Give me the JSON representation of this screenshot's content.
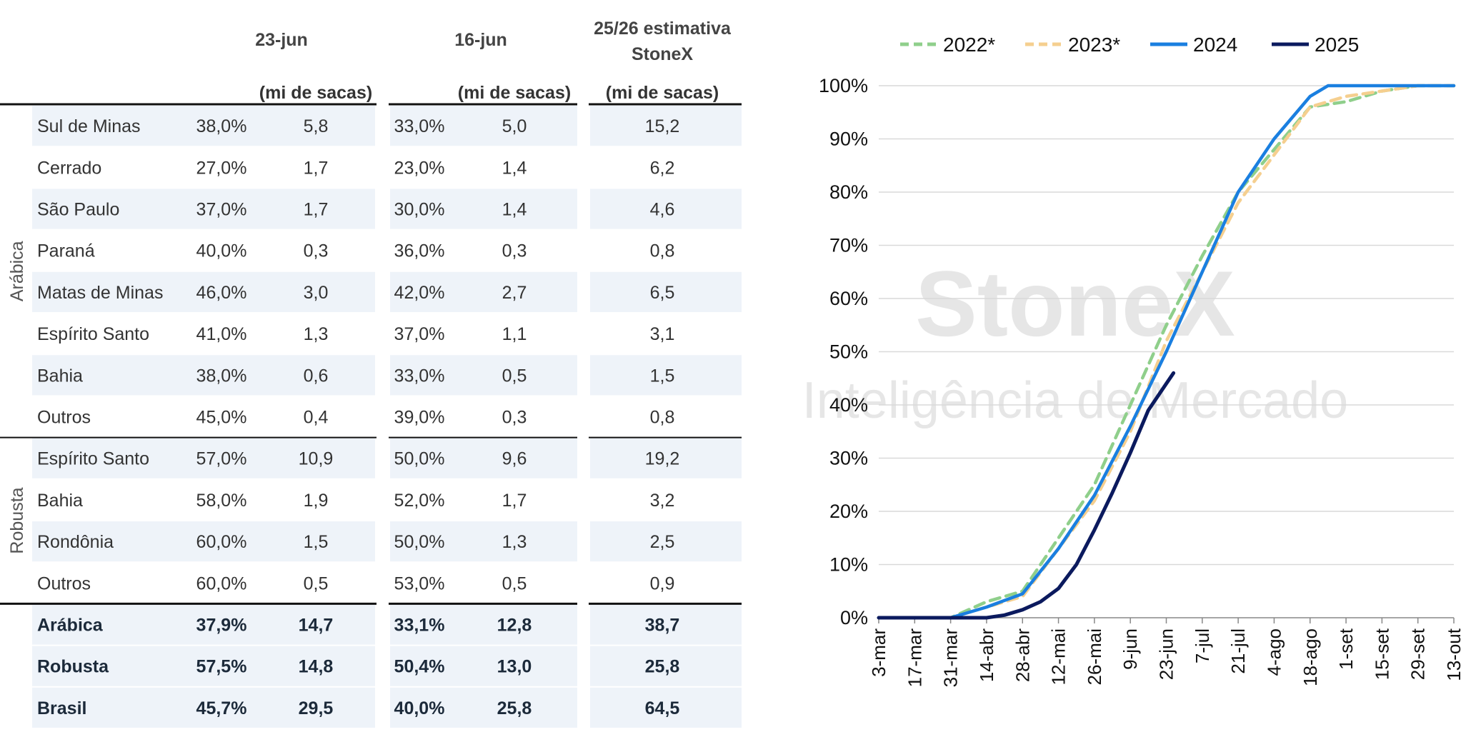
{
  "table": {
    "headers": {
      "col_23jun": "23-jun",
      "col_16jun": "16-jun",
      "col_est_line1": "25/26 estimativa",
      "col_est_line2": "StoneX",
      "unit": "(mi de sacas)"
    },
    "groups": {
      "arabica": "Arábica",
      "robusta": "Robusta"
    },
    "rows": [
      {
        "region": "Sul de Minas",
        "p23": "38,0%",
        "v23": "5,8",
        "p16": "33,0%",
        "v16": "5,0",
        "est": "15,2"
      },
      {
        "region": "Cerrado",
        "p23": "27,0%",
        "v23": "1,7",
        "p16": "23,0%",
        "v16": "1,4",
        "est": "6,2"
      },
      {
        "region": "São Paulo",
        "p23": "37,0%",
        "v23": "1,7",
        "p16": "30,0%",
        "v16": "1,4",
        "est": "4,6"
      },
      {
        "region": "Paraná",
        "p23": "40,0%",
        "v23": "0,3",
        "p16": "36,0%",
        "v16": "0,3",
        "est": "0,8"
      },
      {
        "region": "Matas de Minas",
        "p23": "46,0%",
        "v23": "3,0",
        "p16": "42,0%",
        "v16": "2,7",
        "est": "6,5"
      },
      {
        "region": "Espírito Santo",
        "p23": "41,0%",
        "v23": "1,3",
        "p16": "37,0%",
        "v16": "1,1",
        "est": "3,1"
      },
      {
        "region": "Bahia",
        "p23": "38,0%",
        "v23": "0,6",
        "p16": "33,0%",
        "v16": "0,5",
        "est": "1,5"
      },
      {
        "region": "Outros",
        "p23": "45,0%",
        "v23": "0,4",
        "p16": "39,0%",
        "v16": "0,3",
        "est": "0,8"
      },
      {
        "region": "Espírito Santo",
        "p23": "57,0%",
        "v23": "10,9",
        "p16": "50,0%",
        "v16": "9,6",
        "est": "19,2"
      },
      {
        "region": "Bahia",
        "p23": "58,0%",
        "v23": "1,9",
        "p16": "52,0%",
        "v16": "1,7",
        "est": "3,2"
      },
      {
        "region": "Rondônia",
        "p23": "60,0%",
        "v23": "1,5",
        "p16": "50,0%",
        "v16": "1,3",
        "est": "2,5"
      },
      {
        "region": "Outros",
        "p23": "60,0%",
        "v23": "0,5",
        "p16": "53,0%",
        "v16": "0,5",
        "est": "0,9"
      }
    ],
    "totals": [
      {
        "region": "Arábica",
        "p23": "37,9%",
        "v23": "14,7",
        "p16": "33,1%",
        "v16": "12,8",
        "est": "38,7"
      },
      {
        "region": "Robusta",
        "p23": "57,5%",
        "v23": "14,8",
        "p16": "50,4%",
        "v16": "13,0",
        "est": "25,8"
      },
      {
        "region": "Brasil",
        "p23": "45,7%",
        "v23": "29,5",
        "p16": "40,0%",
        "v16": "25,8",
        "est": "64,5"
      }
    ]
  },
  "watermark": {
    "brand": "StoneX",
    "tagline": "Inteligência de Mercado"
  },
  "colors": {
    "row_shade": "#eef3f9",
    "text_dark": "#1c2a3a",
    "text_body": "#333333",
    "series_2022": "#8fcf8b",
    "series_2023": "#f5cf8f",
    "series_2024": "#1a7fe0",
    "series_2025": "#0b1a5e"
  },
  "chart_data": {
    "type": "line",
    "x": [
      "3-mar",
      "17-mar",
      "31-mar",
      "14-abr",
      "28-abr",
      "12-mai",
      "26-mai",
      "9-jun",
      "23-jun",
      "7-jul",
      "21-jul",
      "4-ago",
      "18-ago",
      "1-set",
      "15-set",
      "29-set",
      "13-out"
    ],
    "yticks": [
      "0%",
      "10%",
      "20%",
      "30%",
      "40%",
      "50%",
      "60%",
      "70%",
      "80%",
      "90%",
      "100%"
    ],
    "ylim": [
      0,
      100
    ],
    "grid": true,
    "legend_position": "top",
    "series": [
      {
        "name": "2022*",
        "style": "dashed",
        "color": "#8fcf8b",
        "points": [
          [
            0,
            0
          ],
          [
            1,
            0
          ],
          [
            2,
            0
          ],
          [
            3,
            3
          ],
          [
            4,
            5
          ],
          [
            5,
            15
          ],
          [
            6,
            25
          ],
          [
            7,
            40
          ],
          [
            8,
            55
          ],
          [
            9,
            68
          ],
          [
            10,
            80
          ],
          [
            11,
            88
          ],
          [
            12,
            96
          ],
          [
            13,
            97
          ],
          [
            14,
            99
          ],
          [
            15,
            100
          ],
          [
            16,
            100
          ]
        ]
      },
      {
        "name": "2023*",
        "style": "dashed",
        "color": "#f5cf8f",
        "points": [
          [
            0,
            0
          ],
          [
            1,
            0
          ],
          [
            2,
            0
          ],
          [
            3,
            2
          ],
          [
            4,
            4
          ],
          [
            5,
            13
          ],
          [
            6,
            22
          ],
          [
            7,
            35
          ],
          [
            8,
            52
          ],
          [
            9,
            65
          ],
          [
            10,
            78
          ],
          [
            11,
            87
          ],
          [
            12,
            96
          ],
          [
            13,
            98
          ],
          [
            14,
            99
          ],
          [
            15,
            100
          ],
          [
            16,
            100
          ]
        ]
      },
      {
        "name": "2024",
        "style": "solid",
        "color": "#1a7fe0",
        "points": [
          [
            0,
            0
          ],
          [
            1,
            0
          ],
          [
            2,
            0
          ],
          [
            3,
            2
          ],
          [
            4,
            4.5
          ],
          [
            5,
            13
          ],
          [
            6,
            23
          ],
          [
            7,
            36
          ],
          [
            8,
            50
          ],
          [
            9,
            65
          ],
          [
            10,
            80
          ],
          [
            11,
            90
          ],
          [
            12,
            98
          ],
          [
            12.5,
            100
          ],
          [
            13,
            100
          ],
          [
            14,
            100
          ],
          [
            15,
            100
          ],
          [
            16,
            100
          ]
        ]
      },
      {
        "name": "2025",
        "style": "solid",
        "color": "#0b1a5e",
        "points": [
          [
            0,
            0
          ],
          [
            1,
            0
          ],
          [
            2,
            0
          ],
          [
            3,
            0
          ],
          [
            3.5,
            0.5
          ],
          [
            4,
            1.5
          ],
          [
            4.5,
            3
          ],
          [
            5,
            5.5
          ],
          [
            5.5,
            10
          ],
          [
            6,
            16.5
          ],
          [
            6.5,
            23.5
          ],
          [
            7,
            31
          ],
          [
            7.5,
            39
          ],
          [
            8,
            44
          ],
          [
            8.2,
            46
          ]
        ]
      }
    ]
  }
}
